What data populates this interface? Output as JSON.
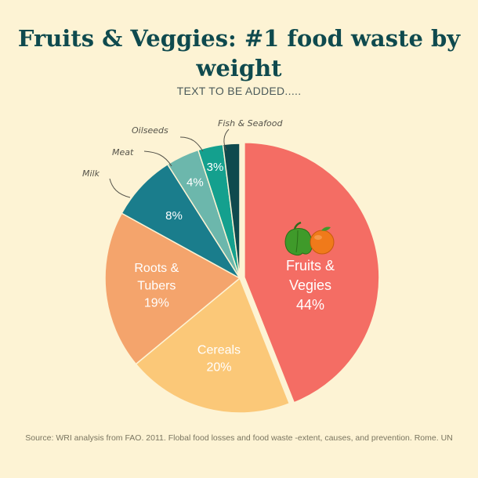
{
  "title": "Fruits & Veggies: #1 food waste by weight",
  "subtitle": "TEXT TO BE ADDED.....",
  "source": "Source: WRI analysis from FAO. 2011. Flobal food losses and food waste -extent, causes, and prevention. Rome. UN",
  "chart_data": {
    "type": "pie",
    "title": "Fruits & Veggies: #1 food waste by weight",
    "unit": "%",
    "slices": [
      {
        "label": "Fruits & Vegies",
        "value": 44,
        "display": "44%",
        "color": "#f46d64",
        "exploded": true,
        "icons": [
          "pepper-icon",
          "orange-icon"
        ]
      },
      {
        "label": "Cereals",
        "value": 20,
        "display": "20%",
        "color": "#fbc878"
      },
      {
        "label": "Roots & Tubers",
        "value": 19,
        "display": "19%",
        "color": "#f4a46c"
      },
      {
        "label": "Milk",
        "value": 8,
        "display": "8%",
        "color": "#1a7d8c"
      },
      {
        "label": "Meat",
        "value": 4,
        "display": "4%",
        "color": "#6cb7ac"
      },
      {
        "label": "Oilseeds",
        "value": 3,
        "display": "3%",
        "color": "#14a08e"
      },
      {
        "label": "Fish & Seafood",
        "value": 2,
        "display": "",
        "color": "#0f4a4e"
      }
    ],
    "legend": "none",
    "callout_labels": [
      "Oilseeds",
      "Fish & Seafood",
      "Meat",
      "Milk"
    ]
  }
}
